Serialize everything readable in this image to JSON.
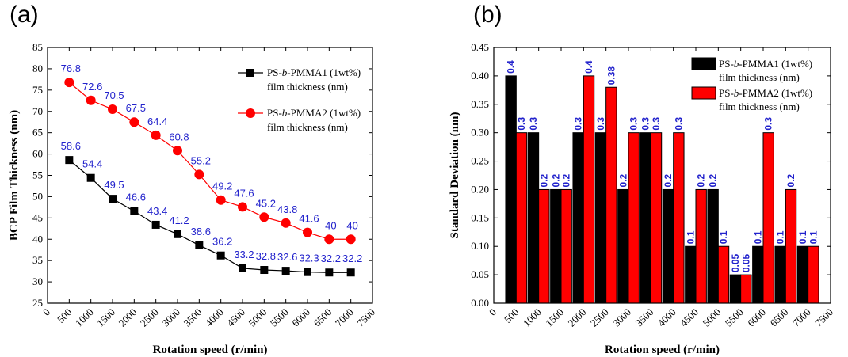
{
  "panels": [
    {
      "label": "(a)"
    },
    {
      "label": "(b)"
    }
  ],
  "chart_data": [
    {
      "type": "line",
      "xlabel": "Rotation speed (r/min)",
      "ylabel": "BCP Film Thickness (nm)",
      "xlim": [
        0,
        7500
      ],
      "ylim": [
        25,
        85
      ],
      "xticks": [
        "0",
        "500",
        "1000",
        "1500",
        "2000",
        "2500",
        "3000",
        "3500",
        "4000",
        "4500",
        "5000",
        "5500",
        "6000",
        "6500",
        "7000",
        "7500"
      ],
      "yticks": [
        "25",
        "30",
        "35",
        "40",
        "45",
        "50",
        "55",
        "60",
        "65",
        "70",
        "75",
        "80",
        "85"
      ],
      "x": [
        500,
        1000,
        1500,
        2000,
        2500,
        3000,
        3500,
        4000,
        4500,
        5000,
        5500,
        6000,
        6500,
        7000
      ],
      "series": [
        {
          "name_line1": "PS-b-PMMA1 (1wt%)",
          "name_line2": "film thickness (nm)",
          "color": "#000000",
          "marker": "square",
          "values": [
            58.6,
            54.4,
            49.5,
            46.6,
            43.4,
            41.2,
            38.6,
            36.2,
            33.2,
            32.8,
            32.6,
            32.3,
            32.2,
            32.2
          ],
          "labels": [
            "58.6",
            "54.4",
            "49.5",
            "46.6",
            "43.4",
            "41.2",
            "38.6",
            "36.2",
            "33.2",
            "32.8",
            "32.6",
            "32.3",
            "32.2",
            "32.2"
          ]
        },
        {
          "name_line1": "PS-b-PMMA2 (1wt%)",
          "name_line2": "film thickness (nm)",
          "color": "#ff0000",
          "marker": "circle",
          "values": [
            76.8,
            72.6,
            70.5,
            67.5,
            64.4,
            60.8,
            55.2,
            49.2,
            47.6,
            45.2,
            43.8,
            41.6,
            40,
            40
          ],
          "labels": [
            "76.8",
            "72.6",
            "70.5",
            "67.5",
            "64.4",
            "60.8",
            "55.2",
            "49.2",
            "47.6",
            "45.2",
            "43.8",
            "41.6",
            "40",
            "40"
          ]
        }
      ],
      "legend": "top-right"
    },
    {
      "type": "bar",
      "xlabel": "Rotation speed (r/min)",
      "ylabel": "Standard Deviation (nm)",
      "xlim": [
        0,
        7500
      ],
      "ylim": [
        0,
        0.45
      ],
      "xticks": [
        "0",
        "500",
        "1000",
        "1500",
        "2000",
        "2500",
        "3000",
        "3500",
        "4000",
        "4500",
        "5000",
        "5500",
        "6000",
        "6500",
        "7000",
        "7500"
      ],
      "yticks": [
        "0.00",
        "0.05",
        "0.10",
        "0.15",
        "0.20",
        "0.25",
        "0.30",
        "0.35",
        "0.40",
        "0.45"
      ],
      "categories": [
        500,
        1000,
        1500,
        2000,
        2500,
        3000,
        3500,
        4000,
        4500,
        5000,
        5500,
        6000,
        6500,
        7000
      ],
      "series": [
        {
          "name_line1": "PS-b-PMMA1 (1wt%)",
          "name_line2": "film thickness (nm)",
          "color": "#000000",
          "values": [
            0.4,
            0.3,
            0.2,
            0.3,
            0.3,
            0.2,
            0.3,
            0.2,
            0.1,
            0.2,
            0.05,
            0.1,
            0.1,
            0.1
          ],
          "labels": [
            "0.4",
            "0.3",
            "0.2",
            "0.3",
            "0.3",
            "0.2",
            "0.3",
            "0.2",
            "0.1",
            "0.2",
            "0.05",
            "0.1",
            "0.1",
            "0.1"
          ]
        },
        {
          "name_line1": "PS-b-PMMA2 (1wt%)",
          "name_line2": "film thickness (nm)",
          "color": "#ff0000",
          "values": [
            0.3,
            0.2,
            0.2,
            0.4,
            0.38,
            0.3,
            0.3,
            0.3,
            0.2,
            0.1,
            0.05,
            0.3,
            0.2,
            0.1
          ],
          "labels": [
            "0.3",
            "0.2",
            "0.2",
            "0.4",
            "0.38",
            "0.3",
            "0.3",
            "0.3",
            "0.2",
            "0.1",
            "0.05",
            "0.3",
            "0.2",
            "0.1"
          ]
        }
      ],
      "legend": "top-right"
    }
  ]
}
